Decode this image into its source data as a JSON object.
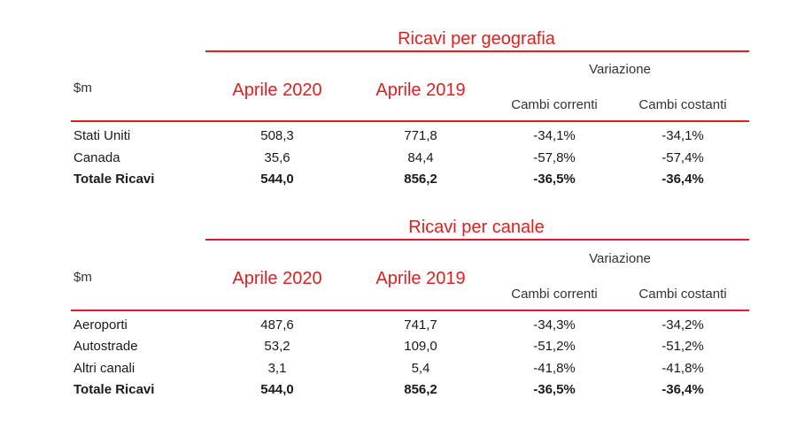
{
  "tables": [
    {
      "title": "Ricavi per geografia",
      "unit": "$m",
      "col_2020": "Aprile 2020",
      "col_2019": "Aprile 2019",
      "variation": "Variazione",
      "var_current": "Cambi correnti",
      "var_constant": "Cambi costanti",
      "rows": [
        {
          "label": "Stati Uniti",
          "a2020": "508,3",
          "a2019": "771,8",
          "cur": "-34,1%",
          "const": "-34,1%"
        },
        {
          "label": "Canada",
          "a2020": "35,6",
          "a2019": "84,4",
          "cur": "-57,8%",
          "const": "-57,4%"
        },
        {
          "label": "Totale Ricavi",
          "a2020": "544,0",
          "a2019": "856,2",
          "cur": "-36,5%",
          "const": "-36,4%"
        }
      ]
    },
    {
      "title": "Ricavi per canale",
      "unit": "$m",
      "col_2020": "Aprile 2020",
      "col_2019": "Aprile 2019",
      "variation": "Variazione",
      "var_current": "Cambi correnti",
      "var_constant": "Cambi costanti",
      "rows": [
        {
          "label": "Aeroporti",
          "a2020": "487,6",
          "a2019": "741,7",
          "cur": "-34,3%",
          "const": "-34,2%"
        },
        {
          "label": "Autostrade",
          "a2020": "53,2",
          "a2019": "109,0",
          "cur": "-51,2%",
          "const": "-51,2%"
        },
        {
          "label": "Altri canali",
          "a2020": "3,1",
          "a2019": "5,4",
          "cur": "-41,8%",
          "const": "-41,8%"
        },
        {
          "label": "Totale Ricavi",
          "a2020": "544,0",
          "a2019": "856,2",
          "cur": "-36,5%",
          "const": "-36,4%"
        }
      ]
    }
  ]
}
